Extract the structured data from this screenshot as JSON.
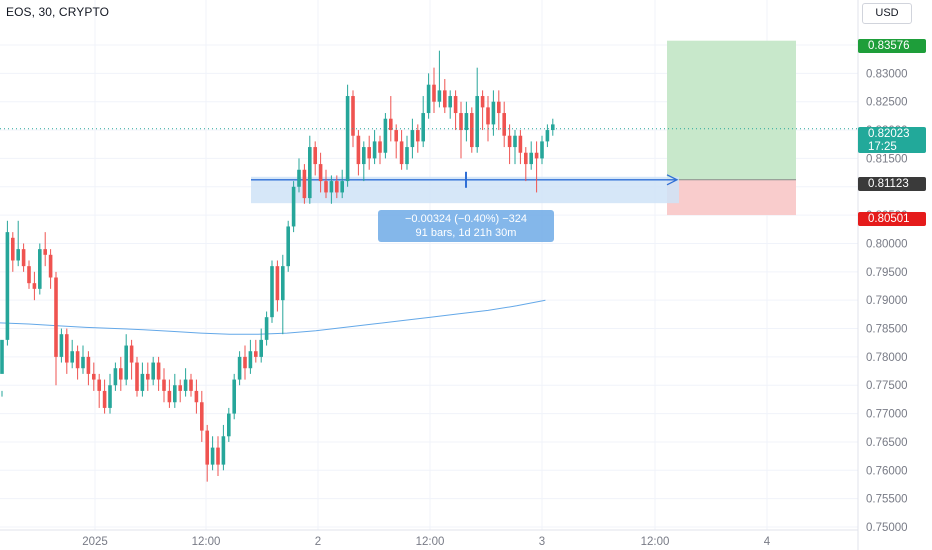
{
  "header": {
    "symbol_title": "EOS, 30, CRYPTO",
    "currency_button": "USD"
  },
  "price_tags": {
    "target": "0.83576",
    "last_price": "0.82023",
    "countdown": "17:25",
    "entry": "0.81123",
    "stop": "0.80501"
  },
  "measure": {
    "line1": "−0.00324 (−0.40%) −324",
    "line2": "91 bars, 1d 21h 30m"
  },
  "colors": {
    "up_candle": "#26a69a",
    "down_candle": "#ef5350",
    "moving_average": "#64a8e8",
    "target_zone": "#c8e8cb",
    "stop_zone": "#f9cccc",
    "measure_zone": "#cfe3f7",
    "measure_arrow": "#2f6fd6"
  },
  "chart_data": {
    "type": "candlestick",
    "title": "EOS, 30, CRYPTO",
    "symbol": "EOS",
    "interval": "30",
    "exchange": "CRYPTO",
    "currency": "USD",
    "y_ticks": [
      "0.75000",
      "0.75500",
      "0.76000",
      "0.76500",
      "0.77000",
      "0.77500",
      "0.78000",
      "0.78500",
      "0.79000",
      "0.79500",
      "0.80000",
      "0.80500",
      "0.81000",
      "0.81500",
      "0.82000",
      "0.82500",
      "0.83000",
      "0.83500"
    ],
    "x_ticks": [
      "2025",
      "12:00",
      "2",
      "12:00",
      "3",
      "12:00",
      "4"
    ],
    "ylim": [
      0.7485,
      0.8385
    ],
    "grid": true,
    "last_price": 0.82023,
    "candles": [
      [
        0.777,
        0.783,
        0.774,
        0.773
      ],
      [
        0.783,
        0.802,
        0.804,
        0.782
      ],
      [
        0.801,
        0.797,
        0.802,
        0.795
      ],
      [
        0.797,
        0.799,
        0.804,
        0.796
      ],
      [
        0.799,
        0.796,
        0.8,
        0.795
      ],
      [
        0.796,
        0.793,
        0.797,
        0.792
      ],
      [
        0.793,
        0.792,
        0.795,
        0.79
      ],
      [
        0.792,
        0.799,
        0.8,
        0.791
      ],
      [
        0.799,
        0.798,
        0.802,
        0.796
      ],
      [
        0.798,
        0.794,
        0.799,
        0.792
      ],
      [
        0.794,
        0.78,
        0.795,
        0.775
      ],
      [
        0.78,
        0.784,
        0.785,
        0.779
      ],
      [
        0.784,
        0.779,
        0.785,
        0.777
      ],
      [
        0.779,
        0.781,
        0.783,
        0.778
      ],
      [
        0.781,
        0.778,
        0.782,
        0.776
      ],
      [
        0.778,
        0.78,
        0.782,
        0.777
      ],
      [
        0.78,
        0.777,
        0.781,
        0.775
      ],
      [
        0.777,
        0.776,
        0.779,
        0.774
      ],
      [
        0.776,
        0.774,
        0.777,
        0.771
      ],
      [
        0.774,
        0.771,
        0.776,
        0.77
      ],
      [
        0.771,
        0.775,
        0.777,
        0.77
      ],
      [
        0.775,
        0.778,
        0.779,
        0.774
      ],
      [
        0.778,
        0.776,
        0.78,
        0.774
      ],
      [
        0.776,
        0.782,
        0.784,
        0.775
      ],
      [
        0.782,
        0.779,
        0.783,
        0.776
      ],
      [
        0.779,
        0.774,
        0.78,
        0.773
      ],
      [
        0.774,
        0.777,
        0.779,
        0.773
      ],
      [
        0.777,
        0.776,
        0.779,
        0.774
      ],
      [
        0.776,
        0.779,
        0.78,
        0.775
      ],
      [
        0.779,
        0.776,
        0.78,
        0.774
      ],
      [
        0.776,
        0.774,
        0.778,
        0.772
      ],
      [
        0.774,
        0.772,
        0.776,
        0.771
      ],
      [
        0.772,
        0.775,
        0.777,
        0.771
      ],
      [
        0.775,
        0.774,
        0.776,
        0.772
      ],
      [
        0.774,
        0.776,
        0.778,
        0.773
      ],
      [
        0.776,
        0.774,
        0.777,
        0.773
      ],
      [
        0.774,
        0.772,
        0.776,
        0.77
      ],
      [
        0.772,
        0.767,
        0.774,
        0.765
      ],
      [
        0.767,
        0.761,
        0.768,
        0.758
      ],
      [
        0.761,
        0.764,
        0.766,
        0.76
      ],
      [
        0.764,
        0.761,
        0.766,
        0.759
      ],
      [
        0.761,
        0.766,
        0.768,
        0.76
      ],
      [
        0.766,
        0.77,
        0.771,
        0.765
      ],
      [
        0.77,
        0.776,
        0.777,
        0.769
      ],
      [
        0.776,
        0.78,
        0.781,
        0.775
      ],
      [
        0.78,
        0.778,
        0.782,
        0.776
      ],
      [
        0.778,
        0.781,
        0.783,
        0.777
      ],
      [
        0.781,
        0.78,
        0.783,
        0.779
      ],
      [
        0.78,
        0.783,
        0.785,
        0.779
      ],
      [
        0.783,
        0.787,
        0.788,
        0.782
      ],
      [
        0.787,
        0.796,
        0.797,
        0.786
      ],
      [
        0.796,
        0.79,
        0.797,
        0.788
      ],
      [
        0.79,
        0.796,
        0.798,
        0.784
      ],
      [
        0.796,
        0.803,
        0.804,
        0.795
      ],
      [
        0.803,
        0.81,
        0.811,
        0.802
      ],
      [
        0.81,
        0.813,
        0.815,
        0.809
      ],
      [
        0.813,
        0.808,
        0.814,
        0.807
      ],
      [
        0.808,
        0.817,
        0.819,
        0.807
      ],
      [
        0.817,
        0.814,
        0.818,
        0.812
      ],
      [
        0.814,
        0.811,
        0.816,
        0.809
      ],
      [
        0.811,
        0.809,
        0.813,
        0.808
      ],
      [
        0.809,
        0.811,
        0.812,
        0.807
      ],
      [
        0.811,
        0.809,
        0.812,
        0.808
      ],
      [
        0.809,
        0.811,
        0.813,
        0.808
      ],
      [
        0.811,
        0.826,
        0.828,
        0.81
      ],
      [
        0.826,
        0.819,
        0.827,
        0.817
      ],
      [
        0.819,
        0.814,
        0.82,
        0.812
      ],
      [
        0.814,
        0.817,
        0.818,
        0.811
      ],
      [
        0.817,
        0.815,
        0.819,
        0.813
      ],
      [
        0.815,
        0.818,
        0.82,
        0.814
      ],
      [
        0.818,
        0.816,
        0.819,
        0.814
      ],
      [
        0.816,
        0.822,
        0.823,
        0.815
      ],
      [
        0.822,
        0.82,
        0.826,
        0.818
      ],
      [
        0.82,
        0.818,
        0.821,
        0.815
      ],
      [
        0.818,
        0.814,
        0.82,
        0.813
      ],
      [
        0.814,
        0.817,
        0.819,
        0.813
      ],
      [
        0.817,
        0.82,
        0.822,
        0.815
      ],
      [
        0.82,
        0.818,
        0.821,
        0.816
      ],
      [
        0.818,
        0.823,
        0.826,
        0.817
      ],
      [
        0.823,
        0.828,
        0.83,
        0.822
      ],
      [
        0.828,
        0.825,
        0.831,
        0.823
      ],
      [
        0.825,
        0.827,
        0.834,
        0.824
      ],
      [
        0.827,
        0.824,
        0.829,
        0.823
      ],
      [
        0.824,
        0.826,
        0.827,
        0.822
      ],
      [
        0.826,
        0.823,
        0.827,
        0.82
      ],
      [
        0.823,
        0.82,
        0.825,
        0.815
      ],
      [
        0.82,
        0.823,
        0.825,
        0.818
      ],
      [
        0.823,
        0.817,
        0.824,
        0.816
      ],
      [
        0.817,
        0.826,
        0.831,
        0.816
      ],
      [
        0.826,
        0.824,
        0.827,
        0.82
      ],
      [
        0.824,
        0.821,
        0.826,
        0.818
      ],
      [
        0.821,
        0.825,
        0.827,
        0.819
      ],
      [
        0.825,
        0.823,
        0.827,
        0.82
      ],
      [
        0.823,
        0.819,
        0.825,
        0.817
      ],
      [
        0.819,
        0.817,
        0.821,
        0.814
      ],
      [
        0.817,
        0.819,
        0.82,
        0.814
      ],
      [
        0.819,
        0.816,
        0.82,
        0.814
      ],
      [
        0.816,
        0.814,
        0.817,
        0.811
      ],
      [
        0.814,
        0.816,
        0.818,
        0.813
      ],
      [
        0.816,
        0.815,
        0.818,
        0.809
      ],
      [
        0.815,
        0.818,
        0.819,
        0.814
      ],
      [
        0.818,
        0.82,
        0.821,
        0.817
      ],
      [
        0.82,
        0.821,
        0.822,
        0.819
      ]
    ],
    "moving_average": {
      "x_start": 0,
      "x_end": 101,
      "values": [
        0.786,
        0.7858,
        0.7855,
        0.7852,
        0.785,
        0.7848,
        0.7845,
        0.7842,
        0.784,
        0.784,
        0.7842,
        0.7846,
        0.7852,
        0.7858,
        0.7864,
        0.787,
        0.7876,
        0.7882,
        0.789,
        0.79
      ]
    },
    "long_position": {
      "entry": 0.81123,
      "target": 0.83576,
      "stop": 0.80501
    },
    "measure": {
      "change": -0.00324,
      "change_pct": -0.4,
      "ticks": -324,
      "bars": 91,
      "duration": "1d 21h 30m"
    }
  }
}
